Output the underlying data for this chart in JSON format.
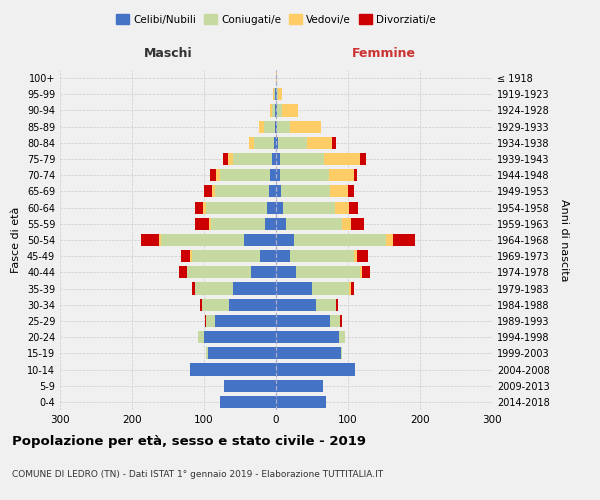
{
  "age_groups": [
    "0-4",
    "5-9",
    "10-14",
    "15-19",
    "20-24",
    "25-29",
    "30-34",
    "35-39",
    "40-44",
    "45-49",
    "50-54",
    "55-59",
    "60-64",
    "65-69",
    "70-74",
    "75-79",
    "80-84",
    "85-89",
    "90-94",
    "95-99",
    "100+"
  ],
  "birth_years": [
    "2014-2018",
    "2009-2013",
    "2004-2008",
    "1999-2003",
    "1994-1998",
    "1989-1993",
    "1984-1988",
    "1979-1983",
    "1974-1978",
    "1969-1973",
    "1964-1968",
    "1959-1963",
    "1954-1958",
    "1949-1953",
    "1944-1948",
    "1939-1943",
    "1934-1938",
    "1929-1933",
    "1924-1928",
    "1919-1923",
    "≤ 1918"
  ],
  "male_celibi": [
    78,
    72,
    120,
    95,
    100,
    85,
    65,
    60,
    35,
    22,
    45,
    15,
    12,
    10,
    8,
    5,
    3,
    2,
    1,
    1,
    0
  ],
  "male_coniugati": [
    0,
    0,
    0,
    2,
    8,
    12,
    38,
    52,
    88,
    95,
    115,
    75,
    85,
    75,
    70,
    55,
    28,
    15,
    5,
    2,
    0
  ],
  "male_vedovi": [
    0,
    0,
    0,
    0,
    0,
    0,
    0,
    0,
    1,
    2,
    3,
    3,
    4,
    4,
    6,
    6,
    7,
    6,
    3,
    1,
    0
  ],
  "male_divorziati": [
    0,
    0,
    0,
    0,
    0,
    2,
    3,
    5,
    11,
    13,
    24,
    20,
    11,
    11,
    7,
    8,
    0,
    0,
    0,
    0,
    0
  ],
  "female_nubili": [
    70,
    65,
    110,
    90,
    88,
    75,
    55,
    50,
    28,
    20,
    25,
    14,
    10,
    7,
    5,
    5,
    3,
    2,
    1,
    1,
    0
  ],
  "female_coniugate": [
    0,
    0,
    0,
    2,
    8,
    14,
    28,
    52,
    88,
    88,
    128,
    78,
    72,
    68,
    68,
    62,
    40,
    18,
    8,
    2,
    0
  ],
  "female_vedove": [
    0,
    0,
    0,
    0,
    0,
    0,
    0,
    2,
    3,
    5,
    10,
    12,
    20,
    25,
    35,
    50,
    35,
    42,
    22,
    5,
    1
  ],
  "female_divorziate": [
    0,
    0,
    0,
    0,
    0,
    2,
    3,
    5,
    12,
    15,
    30,
    18,
    12,
    8,
    5,
    8,
    5,
    1,
    0,
    0,
    0
  ],
  "colors": {
    "celibi": "#4472C4",
    "coniugati": "#C5D9A0",
    "vedovi": "#FFCC66",
    "divorziati": "#CC0000"
  },
  "title": "Popolazione per età, sesso e stato civile - 2019",
  "subtitle": "COMUNE DI LEDRO (TN) - Dati ISTAT 1° gennaio 2019 - Elaborazione TUTTITALIA.IT",
  "label_maschi": "Maschi",
  "label_femmine": "Femmine",
  "ylabel_left": "Fasce di età",
  "ylabel_right": "Anni di nascita",
  "legend_labels": [
    "Celibi/Nubili",
    "Coniugati/e",
    "Vedovi/e",
    "Divorziati/e"
  ],
  "background_color": "#f0f0f0",
  "xlim": 300
}
